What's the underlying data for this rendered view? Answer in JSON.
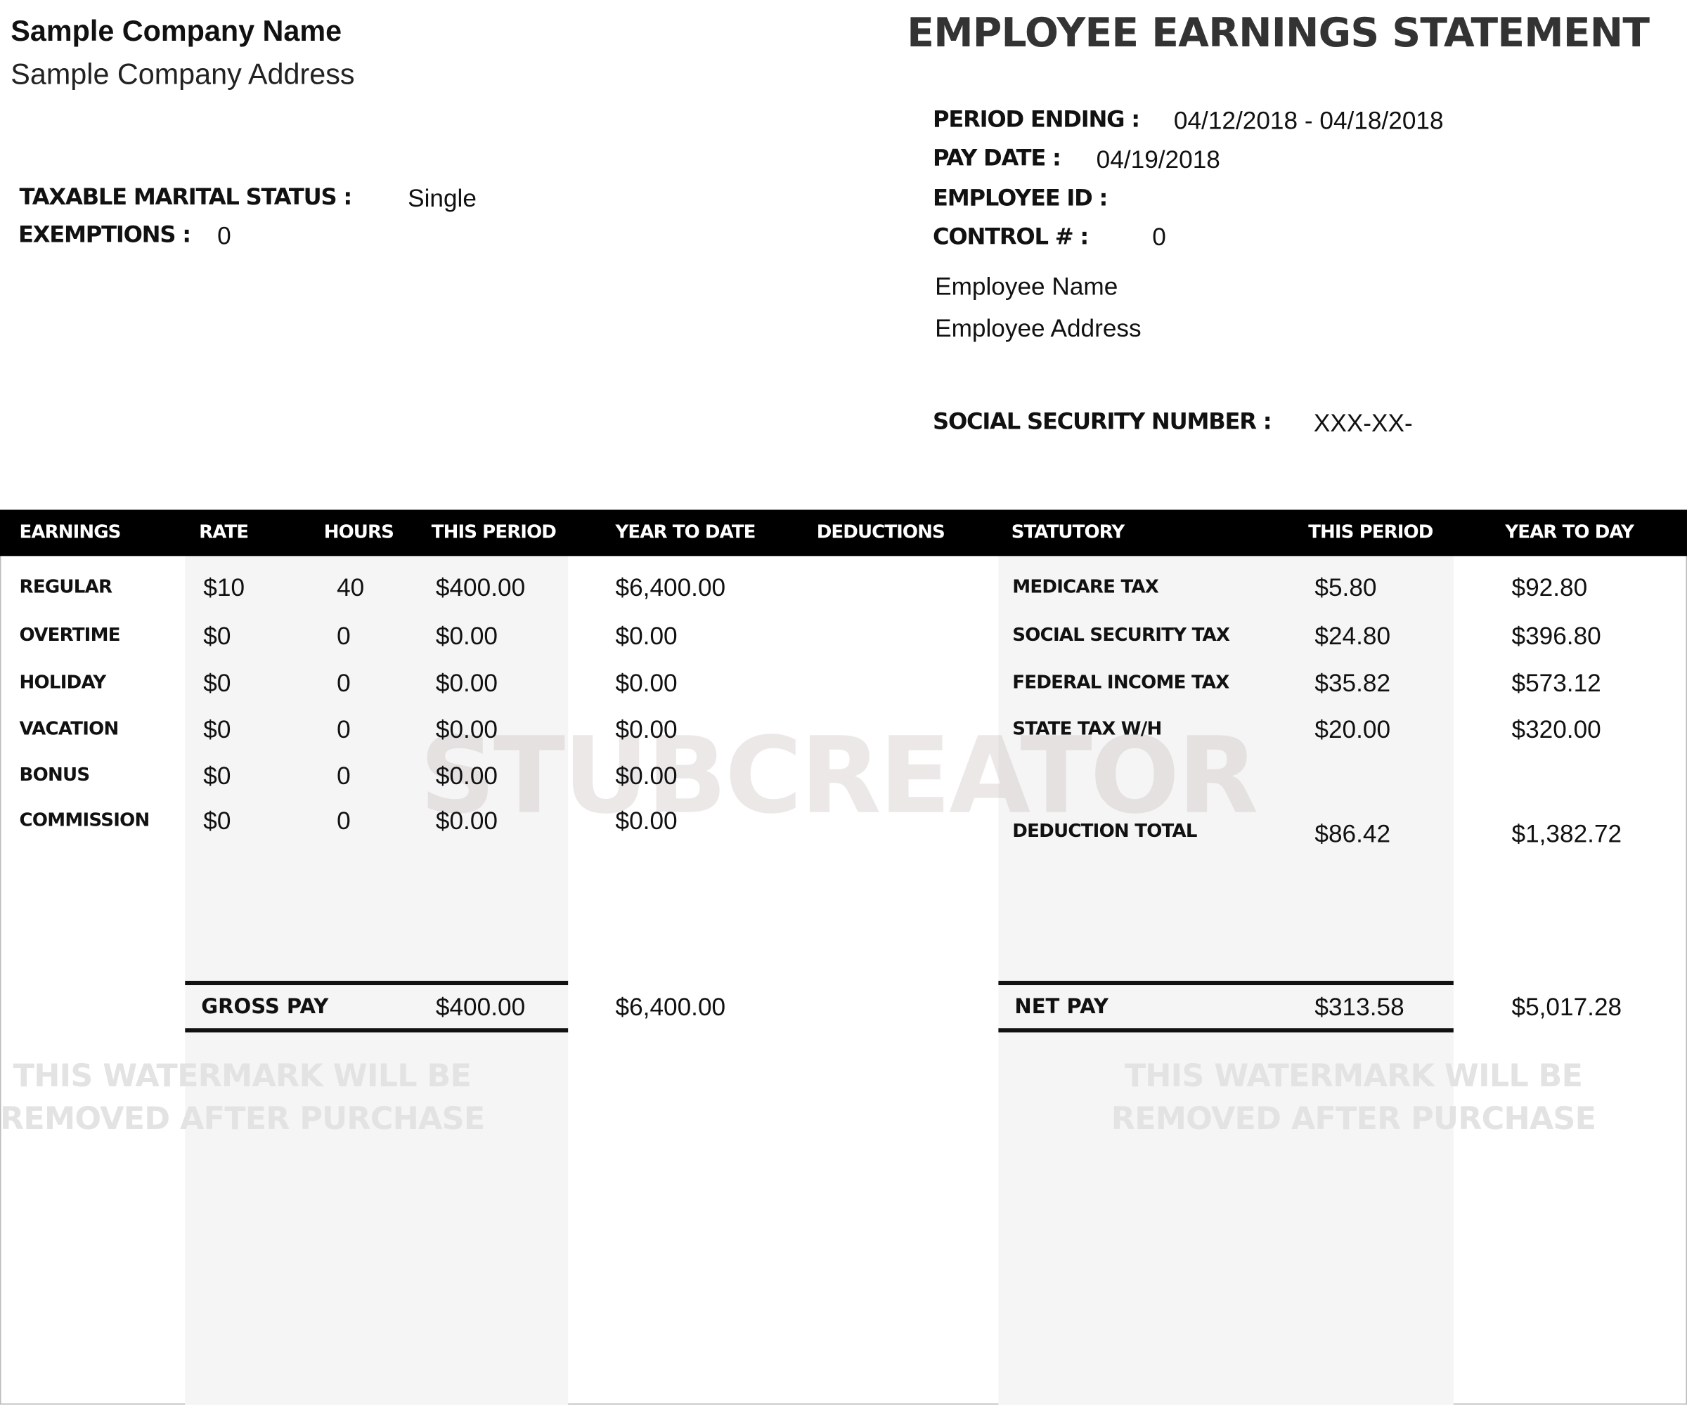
{
  "company": {
    "name": "Sample Company Name",
    "address": "Sample Company Address"
  },
  "title": "EMPLOYEE EARNINGS STATEMENT",
  "info": {
    "period_ending_label": "PERIOD ENDING :",
    "period_ending": "04/12/2018 - 04/18/2018",
    "pay_date_label": "PAY DATE :",
    "pay_date": "04/19/2018",
    "employee_id_label": "EMPLOYEE ID :",
    "control_label": "CONTROL # :",
    "control": "0",
    "employee_name": "Employee Name",
    "employee_address": "Employee Address",
    "ssn_label": "SOCIAL SECURITY NUMBER :",
    "ssn": "XXX-XX-",
    "marital_label": "TAXABLE MARITAL STATUS :",
    "marital": "Single",
    "exemptions_label": "EXEMPTIONS :",
    "exemptions": "0"
  },
  "headers": [
    "EARNINGS",
    "RATE",
    "HOURS",
    "THIS PERIOD",
    "YEAR TO DATE",
    "DEDUCTIONS",
    "STATUTORY",
    "THIS PERIOD",
    "YEAR TO DAY"
  ],
  "earnings": [
    {
      "label": "REGULAR",
      "rate": "$10",
      "hours": "40",
      "period": "$400.00",
      "ytd": "$6,400.00"
    },
    {
      "label": "OVERTIME",
      "rate": "$0",
      "hours": "0",
      "period": "$0.00",
      "ytd": "$0.00"
    },
    {
      "label": "HOLIDAY",
      "rate": "$0",
      "hours": "0",
      "period": "$0.00",
      "ytd": "$0.00"
    },
    {
      "label": "VACATION",
      "rate": "$0",
      "hours": "0",
      "period": "$0.00",
      "ytd": "$0.00"
    },
    {
      "label": "BONUS",
      "rate": "$0",
      "hours": "0",
      "period": "$0.00",
      "ytd": "$0.00"
    },
    {
      "label": "COMMISSION",
      "rate": "$0",
      "hours": "0",
      "period": "$0.00",
      "ytd": "$0.00"
    }
  ],
  "deductions": [
    {
      "label": "MEDICARE TAX",
      "period": "$5.80",
      "ytd": "$92.80"
    },
    {
      "label": "SOCIAL SECURITY TAX",
      "period": "$24.80",
      "ytd": "$396.80"
    },
    {
      "label": "FEDERAL INCOME TAX",
      "period": "$35.82",
      "ytd": "$573.12"
    },
    {
      "label": "STATE TAX W/H",
      "period": "$20.00",
      "ytd": "$320.00"
    }
  ],
  "deduction_total": {
    "label": "DEDUCTION TOTAL",
    "period": "$86.42",
    "ytd": "$1,382.72"
  },
  "gross": {
    "label": "GROSS PAY",
    "period": "$400.00",
    "ytd": "$6,400.00"
  },
  "net": {
    "label": "NET PAY",
    "period": "$313.58",
    "ytd": "$5,017.28"
  },
  "watermark": {
    "main": "STUBCREATOR",
    "line1": "THIS WATERMARK WILL BE",
    "line2": "REMOVED AFTER PURCHASE"
  }
}
